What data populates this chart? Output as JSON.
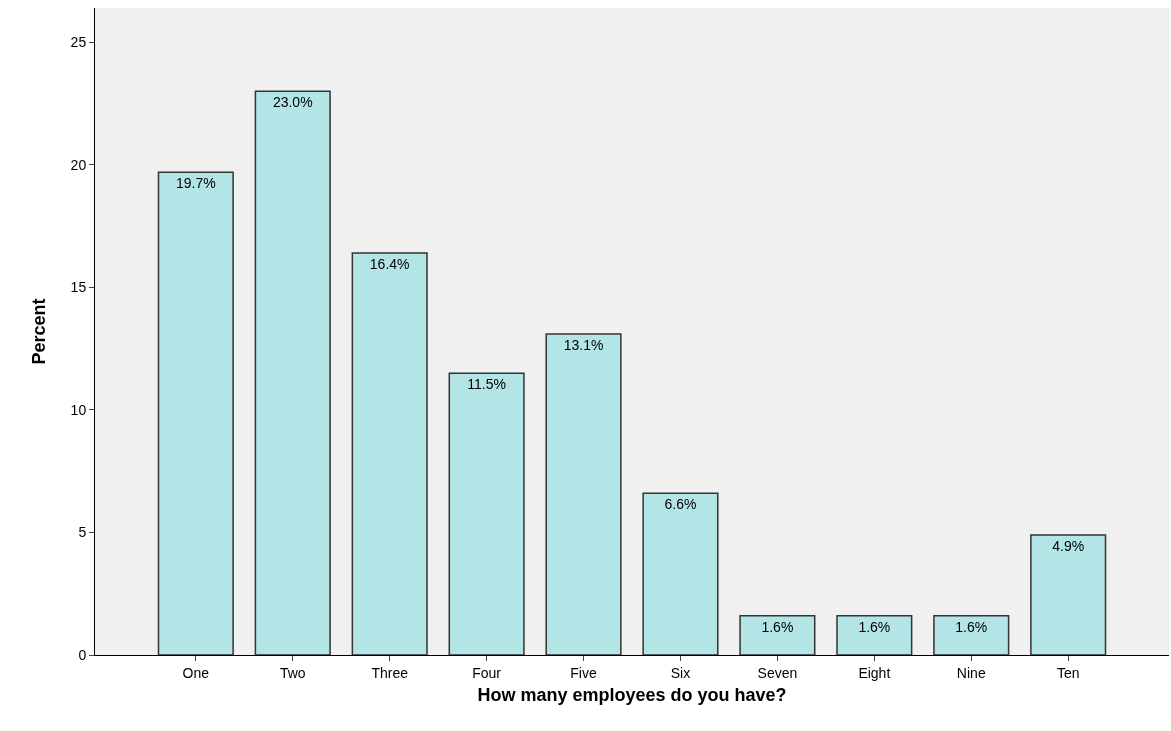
{
  "chart_data": {
    "type": "bar",
    "xlabel": "How many employees do you have?",
    "ylabel": "Percent",
    "categories": [
      "One",
      "Two",
      "Three",
      "Four",
      "Five",
      "Six",
      "Seven",
      "Eight",
      "Nine",
      "Ten"
    ],
    "values": [
      19.7,
      23.0,
      16.4,
      11.5,
      13.1,
      6.6,
      1.6,
      1.6,
      1.6,
      4.9
    ],
    "value_labels": [
      "19.7%",
      "23.0%",
      "16.4%",
      "11.5%",
      "13.1%",
      "6.6%",
      "1.6%",
      "1.6%",
      "1.6%",
      "4.9%"
    ],
    "color": "#b3e5e6",
    "ylim": [
      0,
      26.4
    ],
    "yticks": [
      0,
      5,
      10,
      15,
      20,
      25
    ],
    "grid": false
  }
}
